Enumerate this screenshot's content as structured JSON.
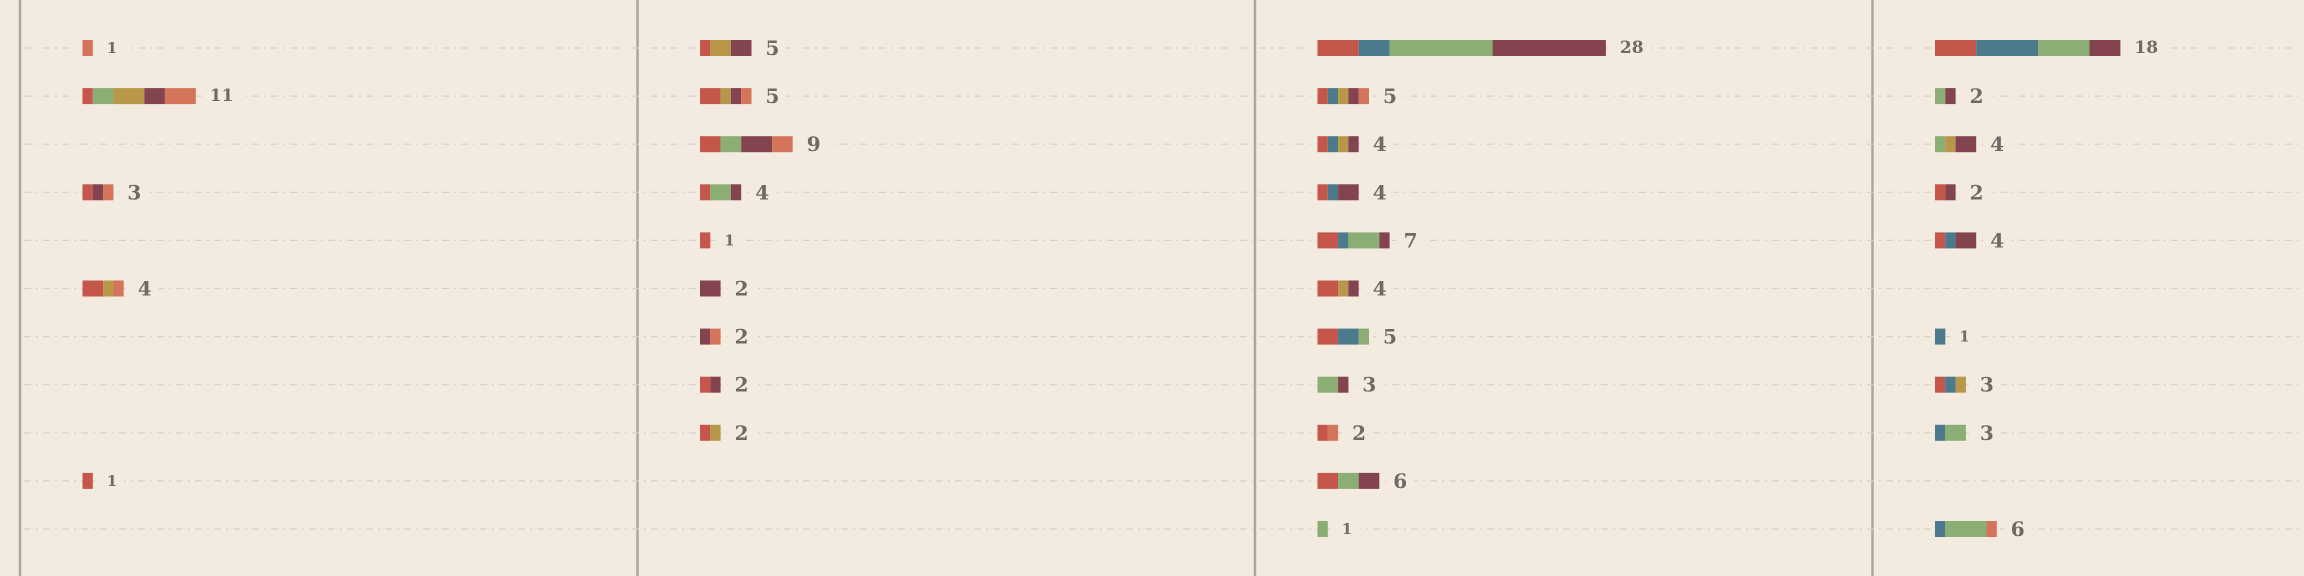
{
  "chart_data": {
    "type": "bar",
    "orientation": "horizontal",
    "stacked": true,
    "layout": "small-multiples",
    "grid": true,
    "grid_style": "dash-dot horizontal lines",
    "segment_colors": [
      "#c4574a",
      "#4a7a8c",
      "#8aae74",
      "#b8974a",
      "#d4745b",
      "#83434f"
    ],
    "rows": 11,
    "panels": [
      {
        "bars": [
          {
            "row": 0,
            "total": 1,
            "segments": [
              {
                "color": "#d4745b",
                "value": 1
              }
            ]
          },
          {
            "row": 1,
            "total": 11,
            "segments": [
              {
                "color": "#c4574a",
                "value": 1
              },
              {
                "color": "#8aae74",
                "value": 2
              },
              {
                "color": "#b8974a",
                "value": 3
              },
              {
                "color": "#83434f",
                "value": 2
              },
              {
                "color": "#d4745b",
                "value": 3
              }
            ]
          },
          {
            "row": 3,
            "total": 3,
            "segments": [
              {
                "color": "#c4574a",
                "value": 1
              },
              {
                "color": "#83434f",
                "value": 1
              },
              {
                "color": "#d4745b",
                "value": 1
              }
            ]
          },
          {
            "row": 5,
            "total": 4,
            "segments": [
              {
                "color": "#c4574a",
                "value": 2
              },
              {
                "color": "#b8974a",
                "value": 1
              },
              {
                "color": "#d4745b",
                "value": 1
              }
            ]
          },
          {
            "row": 9,
            "total": 1,
            "segments": [
              {
                "color": "#c4574a",
                "value": 1
              }
            ]
          }
        ]
      },
      {
        "bars": [
          {
            "row": 0,
            "total": 5,
            "segments": [
              {
                "color": "#c4574a",
                "value": 1
              },
              {
                "color": "#b8974a",
                "value": 2
              },
              {
                "color": "#83434f",
                "value": 2
              }
            ]
          },
          {
            "row": 1,
            "total": 5,
            "segments": [
              {
                "color": "#c4574a",
                "value": 2
              },
              {
                "color": "#b8974a",
                "value": 1
              },
              {
                "color": "#83434f",
                "value": 1
              },
              {
                "color": "#d4745b",
                "value": 1
              }
            ]
          },
          {
            "row": 2,
            "total": 9,
            "segments": [
              {
                "color": "#c4574a",
                "value": 2
              },
              {
                "color": "#8aae74",
                "value": 2
              },
              {
                "color": "#83434f",
                "value": 3
              },
              {
                "color": "#d4745b",
                "value": 2
              }
            ]
          },
          {
            "row": 3,
            "total": 4,
            "segments": [
              {
                "color": "#c4574a",
                "value": 1
              },
              {
                "color": "#8aae74",
                "value": 2
              },
              {
                "color": "#83434f",
                "value": 1
              }
            ]
          },
          {
            "row": 4,
            "total": 1,
            "segments": [
              {
                "color": "#c4574a",
                "value": 1
              }
            ]
          },
          {
            "row": 5,
            "total": 2,
            "segments": [
              {
                "color": "#83434f",
                "value": 2
              }
            ]
          },
          {
            "row": 6,
            "total": 2,
            "segments": [
              {
                "color": "#83434f",
                "value": 1
              },
              {
                "color": "#d4745b",
                "value": 1
              }
            ]
          },
          {
            "row": 7,
            "total": 2,
            "segments": [
              {
                "color": "#c4574a",
                "value": 1
              },
              {
                "color": "#83434f",
                "value": 1
              }
            ]
          },
          {
            "row": 8,
            "total": 2,
            "segments": [
              {
                "color": "#c4574a",
                "value": 1
              },
              {
                "color": "#b8974a",
                "value": 1
              }
            ]
          }
        ]
      },
      {
        "bars": [
          {
            "row": 0,
            "total": 28,
            "segments": [
              {
                "color": "#c4574a",
                "value": 4
              },
              {
                "color": "#4a7a8c",
                "value": 3
              },
              {
                "color": "#8aae74",
                "value": 10
              },
              {
                "color": "#83434f",
                "value": 11
              }
            ]
          },
          {
            "row": 1,
            "total": 5,
            "segments": [
              {
                "color": "#c4574a",
                "value": 1
              },
              {
                "color": "#4a7a8c",
                "value": 1
              },
              {
                "color": "#b8974a",
                "value": 1
              },
              {
                "color": "#83434f",
                "value": 1
              },
              {
                "color": "#d4745b",
                "value": 1
              }
            ]
          },
          {
            "row": 2,
            "total": 4,
            "segments": [
              {
                "color": "#c4574a",
                "value": 1
              },
              {
                "color": "#4a7a8c",
                "value": 1
              },
              {
                "color": "#b8974a",
                "value": 1
              },
              {
                "color": "#83434f",
                "value": 1
              }
            ]
          },
          {
            "row": 3,
            "total": 4,
            "segments": [
              {
                "color": "#c4574a",
                "value": 1
              },
              {
                "color": "#4a7a8c",
                "value": 1
              },
              {
                "color": "#83434f",
                "value": 2
              }
            ]
          },
          {
            "row": 4,
            "total": 7,
            "segments": [
              {
                "color": "#c4574a",
                "value": 2
              },
              {
                "color": "#4a7a8c",
                "value": 1
              },
              {
                "color": "#8aae74",
                "value": 3
              },
              {
                "color": "#83434f",
                "value": 1
              }
            ]
          },
          {
            "row": 5,
            "total": 4,
            "segments": [
              {
                "color": "#c4574a",
                "value": 2
              },
              {
                "color": "#b8974a",
                "value": 1
              },
              {
                "color": "#83434f",
                "value": 1
              }
            ]
          },
          {
            "row": 6,
            "total": 5,
            "segments": [
              {
                "color": "#c4574a",
                "value": 2
              },
              {
                "color": "#4a7a8c",
                "value": 2
              },
              {
                "color": "#8aae74",
                "value": 1
              }
            ]
          },
          {
            "row": 7,
            "total": 3,
            "segments": [
              {
                "color": "#8aae74",
                "value": 2
              },
              {
                "color": "#83434f",
                "value": 1
              }
            ]
          },
          {
            "row": 8,
            "total": 2,
            "segments": [
              {
                "color": "#c4574a",
                "value": 1
              },
              {
                "color": "#d4745b",
                "value": 1
              }
            ]
          },
          {
            "row": 9,
            "total": 6,
            "segments": [
              {
                "color": "#c4574a",
                "value": 2
              },
              {
                "color": "#8aae74",
                "value": 2
              },
              {
                "color": "#83434f",
                "value": 2
              }
            ]
          },
          {
            "row": 10,
            "total": 1,
            "segments": [
              {
                "color": "#8aae74",
                "value": 1
              }
            ]
          }
        ]
      },
      {
        "bars": [
          {
            "row": 0,
            "total": 18,
            "segments": [
              {
                "color": "#c4574a",
                "value": 4
              },
              {
                "color": "#4a7a8c",
                "value": 6
              },
              {
                "color": "#8aae74",
                "value": 5
              },
              {
                "color": "#83434f",
                "value": 3
              }
            ]
          },
          {
            "row": 1,
            "total": 2,
            "segments": [
              {
                "color": "#8aae74",
                "value": 1
              },
              {
                "color": "#83434f",
                "value": 1
              }
            ]
          },
          {
            "row": 2,
            "total": 4,
            "segments": [
              {
                "color": "#8aae74",
                "value": 1
              },
              {
                "color": "#b8974a",
                "value": 1
              },
              {
                "color": "#83434f",
                "value": 2
              }
            ]
          },
          {
            "row": 3,
            "total": 2,
            "segments": [
              {
                "color": "#c4574a",
                "value": 1
              },
              {
                "color": "#83434f",
                "value": 1
              }
            ]
          },
          {
            "row": 4,
            "total": 4,
            "segments": [
              {
                "color": "#c4574a",
                "value": 1
              },
              {
                "color": "#4a7a8c",
                "value": 1
              },
              {
                "color": "#83434f",
                "value": 2
              }
            ]
          },
          {
            "row": 6,
            "total": 1,
            "segments": [
              {
                "color": "#4a7a8c",
                "value": 1
              }
            ]
          },
          {
            "row": 7,
            "total": 3,
            "segments": [
              {
                "color": "#c4574a",
                "value": 1
              },
              {
                "color": "#4a7a8c",
                "value": 1
              },
              {
                "color": "#b8974a",
                "value": 1
              }
            ]
          },
          {
            "row": 8,
            "total": 3,
            "segments": [
              {
                "color": "#4a7a8c",
                "value": 1
              },
              {
                "color": "#8aae74",
                "value": 2
              }
            ]
          },
          {
            "row": 10,
            "total": 6,
            "segments": [
              {
                "color": "#4a7a8c",
                "value": 1
              },
              {
                "color": "#8aae74",
                "value": 4
              },
              {
                "color": "#d4745b",
                "value": 1
              }
            ]
          }
        ]
      }
    ]
  }
}
